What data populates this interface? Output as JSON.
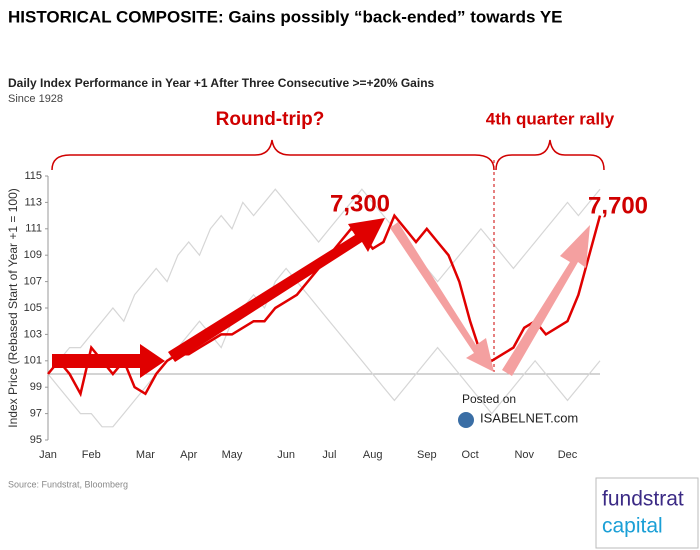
{
  "chart_data": {
    "type": "line",
    "title": "HISTORICAL COMPOSITE: Gains possibly “back-ended” towards YE",
    "subtitle": "Daily Index Performance in Year +1 After Three Consecutive >=+20% Gains",
    "subtitle2": "Since 1928",
    "ylabel": "Index Price (Rebased Start of Year +1 = 100)",
    "source": "Source: Fundstrat, Bloomberg",
    "annotations": [
      "Round-trip?",
      "4th quarter rally",
      "7,300",
      "7,700"
    ],
    "watermark": [
      "Posted on",
      "ISABELNET.com"
    ],
    "logo": [
      "fundstrat",
      "capital"
    ],
    "categories": [
      "Jan",
      null,
      null,
      null,
      "Feb",
      null,
      null,
      null,
      null,
      "Mar",
      null,
      null,
      null,
      "Apr",
      null,
      null,
      null,
      "May",
      null,
      null,
      null,
      null,
      "Jun",
      null,
      null,
      null,
      "Jul",
      null,
      null,
      null,
      "Aug",
      null,
      null,
      null,
      null,
      "Sep",
      null,
      null,
      null,
      "Oct",
      null,
      null,
      null,
      null,
      "Nov",
      null,
      null,
      null,
      "Dec",
      null,
      null,
      null
    ],
    "series": [
      {
        "color": "#d6d6d6",
        "values": [
          100,
          101,
          102,
          102,
          103,
          104,
          105,
          104,
          106,
          107,
          108,
          107,
          109,
          110,
          109,
          111,
          112,
          111,
          113,
          112,
          113,
          114,
          113,
          112,
          111,
          110,
          111,
          112,
          113,
          114,
          113,
          112,
          111,
          110,
          109,
          108,
          107,
          108,
          109,
          110,
          111,
          110,
          109,
          108,
          109,
          110,
          111,
          112,
          113,
          112,
          113,
          114
        ]
      },
      {
        "color": "#d6d6d6",
        "values": [
          100,
          99,
          98,
          97,
          97,
          96,
          96,
          97,
          98,
          99,
          100,
          101,
          102,
          103,
          104,
          103,
          102,
          104,
          105,
          106,
          105,
          107,
          108,
          107,
          106,
          105,
          104,
          103,
          102,
          101,
          100,
          99,
          98,
          99,
          100,
          101,
          102,
          101,
          100,
          99,
          98,
          97,
          98,
          99,
          100,
          101,
          100,
          99,
          98,
          99,
          100,
          101
        ]
      },
      {
        "color": "#e00000",
        "values": [
          100,
          101,
          100,
          98.5,
          102,
          101,
          100,
          101,
          99,
          98.5,
          100,
          101,
          101.5,
          101.5,
          102,
          102.5,
          103,
          103,
          103.5,
          104,
          104,
          105,
          105.5,
          106,
          107,
          108,
          109,
          110,
          111,
          110.5,
          109.5,
          110,
          112,
          111,
          110,
          111,
          110,
          109,
          107,
          104,
          101.5,
          101,
          101.5,
          102,
          103.5,
          104,
          103,
          103.5,
          104,
          106,
          109,
          112
        ]
      }
    ],
    "reference_line": 100,
    "ylim": [
      95,
      115
    ],
    "yticks": [
      95,
      97,
      99,
      101,
      103,
      105,
      107,
      109,
      111,
      113,
      115
    ]
  }
}
